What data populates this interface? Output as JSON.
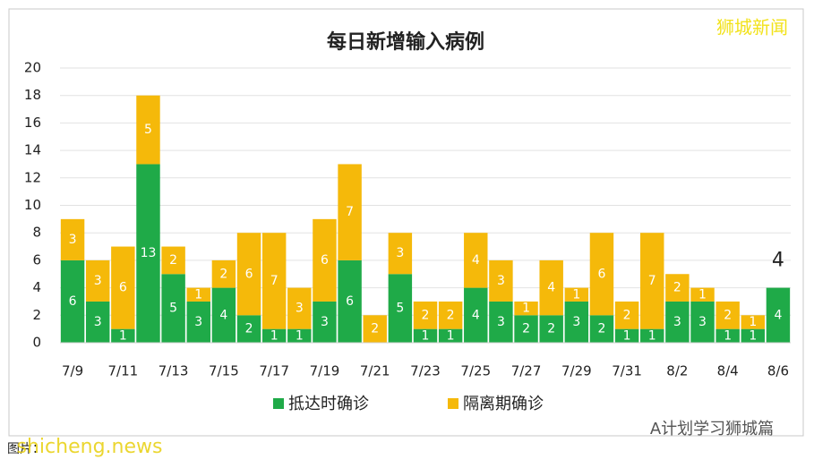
{
  "chart_data": {
    "type": "stacked_bar",
    "title": "每日新增输入病例",
    "categories": [
      "7/9",
      null,
      "7/11",
      null,
      "7/13",
      null,
      "7/15",
      null,
      "7/17",
      null,
      "7/19",
      null,
      "7/21",
      null,
      "7/23",
      null,
      "7/25",
      null,
      "7/27",
      null,
      "7/29",
      null,
      "7/31",
      null,
      "8/2",
      null,
      "8/4",
      null,
      "8/6"
    ],
    "series": [
      {
        "name": "抵达时确诊",
        "color": "#1faa48",
        "values": [
          6,
          3,
          1,
          13,
          5,
          3,
          4,
          2,
          1,
          1,
          3,
          6,
          0,
          5,
          1,
          1,
          4,
          3,
          2,
          2,
          3,
          2,
          1,
          1,
          3,
          3,
          1,
          1,
          4
        ]
      },
      {
        "name": "隔离期确诊",
        "color": "#f5b90a",
        "values": [
          3,
          3,
          6,
          5,
          2,
          1,
          2,
          6,
          7,
          3,
          6,
          7,
          2,
          3,
          2,
          2,
          4,
          3,
          1,
          4,
          1,
          6,
          2,
          7,
          2,
          1,
          2,
          1,
          0
        ]
      }
    ],
    "ylim": [
      0,
      20
    ],
    "yticks": [
      0,
      2,
      4,
      6,
      8,
      10,
      12,
      14,
      16,
      18,
      20
    ],
    "grid": true,
    "legend": "bottom",
    "annotation": "4",
    "watermarks": [
      "狮城新闻",
      "A计划学习狮城篇",
      "shicheng.news"
    ],
    "caption": "图片："
  }
}
